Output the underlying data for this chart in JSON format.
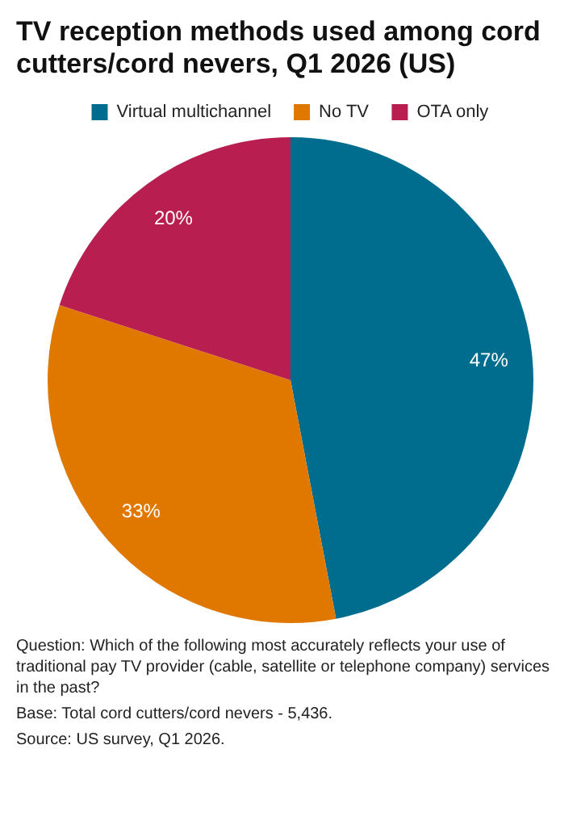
{
  "chart_data": {
    "type": "pie",
    "title": "TV reception methods used among cord cutters/cord nevers, Q1 2026 (US)",
    "categories": [
      "Virtual multichannel",
      "No TV",
      "OTA only"
    ],
    "values": [
      47,
      33,
      20
    ],
    "value_labels": [
      "47%",
      "33%",
      "20%"
    ],
    "colors": [
      "#006d8f",
      "#e07800",
      "#b81e50"
    ],
    "legend": "top",
    "annotations": [
      "Question: Which of the following most accurately reflects your use of traditional pay TV provider (cable, satellite or telephone company) services in the past?",
      "Base: Total cord cutters/cord nevers - 5,436.",
      "Source: US survey, Q1 2026."
    ]
  }
}
